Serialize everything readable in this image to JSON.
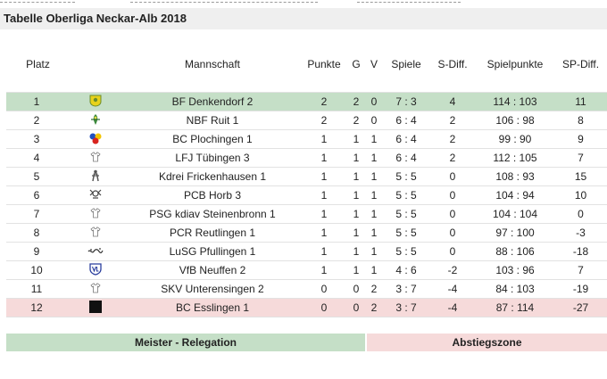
{
  "title": "Tabelle Oberliga Neckar-Alb 2018",
  "columns": {
    "platz": "Platz",
    "mannschaft": "Mannschaft",
    "punkte": "Punkte",
    "g": "G",
    "v": "V",
    "spiele": "Spiele",
    "sdiff": "S-Diff.",
    "spielpunkte": "Spielpunkte",
    "spdiff": "SP-Diff."
  },
  "rows": [
    {
      "platz": "1",
      "team": "BF Denkendorf 2",
      "punkte": "2",
      "g": "2",
      "v": "0",
      "spiele": "7 : 3",
      "sdiff": "4",
      "spielpunkte": "114 : 103",
      "spdiff": "11",
      "crest": "crest-yellow"
    },
    {
      "platz": "2",
      "team": "NBF Ruit 1",
      "punkte": "2",
      "g": "2",
      "v": "0",
      "spiele": "6 : 4",
      "sdiff": "2",
      "spielpunkte": "106 : 98",
      "spdiff": "8",
      "crest": "crest-green"
    },
    {
      "platz": "3",
      "team": "BC Plochingen 1",
      "punkte": "1",
      "g": "1",
      "v": "1",
      "spiele": "6 : 4",
      "sdiff": "2",
      "spielpunkte": "99 : 90",
      "spdiff": "9",
      "crest": "crest-circles"
    },
    {
      "platz": "4",
      "team": "LFJ Tübingen 3",
      "punkte": "1",
      "g": "1",
      "v": "1",
      "spiele": "6 : 4",
      "sdiff": "2",
      "spielpunkte": "112 : 105",
      "spdiff": "7",
      "crest": "crest-shirt"
    },
    {
      "platz": "5",
      "team": "Kdrei Frickenhausen 1",
      "punkte": "1",
      "g": "1",
      "v": "1",
      "spiele": "5 : 5",
      "sdiff": "0",
      "spielpunkte": "108 : 93",
      "spdiff": "15",
      "crest": "crest-figure"
    },
    {
      "platz": "6",
      "team": "PCB Horb 3",
      "punkte": "1",
      "g": "1",
      "v": "1",
      "spiele": "5 : 5",
      "sdiff": "0",
      "spielpunkte": "104 : 94",
      "spdiff": "10",
      "crest": "crest-emblem"
    },
    {
      "platz": "7",
      "team": "PSG kdiav Steinenbronn 1",
      "punkte": "1",
      "g": "1",
      "v": "1",
      "spiele": "5 : 5",
      "sdiff": "0",
      "spielpunkte": "104 : 104",
      "spdiff": "0",
      "crest": "crest-shirt"
    },
    {
      "platz": "8",
      "team": "PCR Reutlingen 1",
      "punkte": "1",
      "g": "1",
      "v": "1",
      "spiele": "5 : 5",
      "sdiff": "0",
      "spielpunkte": "97 : 100",
      "spdiff": "-3",
      "crest": "crest-shirt"
    },
    {
      "platz": "9",
      "team": "LuSG Pfullingen 1",
      "punkte": "1",
      "g": "1",
      "v": "1",
      "spiele": "5 : 5",
      "sdiff": "0",
      "spielpunkte": "88 : 106",
      "spdiff": "-18",
      "crest": "crest-wave"
    },
    {
      "platz": "10",
      "team": "VfB Neuffen 2",
      "punkte": "1",
      "g": "1",
      "v": "1",
      "spiele": "4 : 6",
      "sdiff": "-2",
      "spielpunkte": "103 : 96",
      "spdiff": "7",
      "crest": "crest-shield"
    },
    {
      "platz": "11",
      "team": "SKV Unterensingen 2",
      "punkte": "0",
      "g": "0",
      "v": "2",
      "spiele": "3 : 7",
      "sdiff": "-4",
      "spielpunkte": "84 : 103",
      "spdiff": "-19",
      "crest": "crest-shirt"
    },
    {
      "platz": "12",
      "team": "BC Esslingen 1",
      "punkte": "0",
      "g": "0",
      "v": "2",
      "spiele": "3 : 7",
      "sdiff": "-4",
      "spielpunkte": "87 : 114",
      "spdiff": "-27",
      "crest": "crest-black"
    }
  ],
  "legend": {
    "meister": "Meister - Relegation",
    "abstieg": "Abstiegszone"
  },
  "colors": {
    "promotion": "#c5dfc7",
    "relegation": "#f6dada",
    "title_bar": "#efefef"
  }
}
